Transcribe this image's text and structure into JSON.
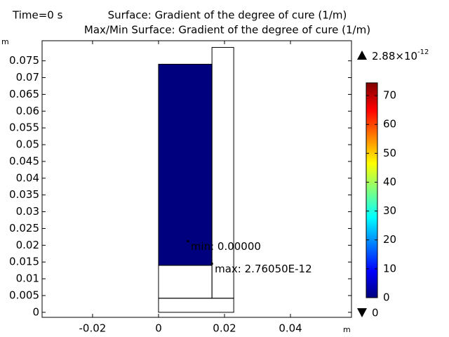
{
  "chart_data": {
    "type": "surface",
    "time_label": "Time=0 s",
    "title": "Surface: Gradient of the degree of cure (1/m)",
    "subtitle": "Max/Min Surface: Gradient of the degree of cure (1/m)",
    "xlabel": "m",
    "ylabel": "m",
    "xlim": [
      -0.0353,
      0.0585
    ],
    "ylim": [
      -0.0015,
      0.081
    ],
    "xticks": [
      -0.02,
      0,
      0.02,
      0.04
    ],
    "yticks": [
      0,
      0.005,
      0.01,
      0.015,
      0.02,
      0.025,
      0.03,
      0.035,
      0.04,
      0.045,
      0.05,
      0.055,
      0.06,
      0.065,
      0.07,
      0.075
    ],
    "domains": [
      {
        "x": [
          0,
          0.0162
        ],
        "y": [
          0.014,
          0.074
        ],
        "value": 0
      },
      {
        "x": [
          0.0162,
          0.0228
        ],
        "y": [
          0.0042,
          0.079
        ]
      },
      {
        "x": [
          0,
          0.0162
        ],
        "y": [
          0.0042,
          0.014
        ]
      },
      {
        "x": [
          0,
          0.0228
        ],
        "y": [
          0,
          0.0042
        ]
      }
    ],
    "annotations": [
      {
        "text": "min: 0.00000",
        "x": 0.0089,
        "y": 0.0212
      },
      {
        "text": "max: 2.76050E-12",
        "x": 0.0162,
        "y": 0.0145
      }
    ],
    "colormap": [
      "#00007f",
      "#0000ff",
      "#007fff",
      "#00ffff",
      "#7fff7f",
      "#ffff00",
      "#ff7f00",
      "#ff0000",
      "#7f0000"
    ],
    "clim": [
      0,
      74.4
    ],
    "cticks": [
      0,
      10,
      20,
      30,
      40,
      50,
      60,
      70
    ],
    "range_max_label": [
      "2.88×10",
      "-12"
    ],
    "range_min_label": "0"
  }
}
